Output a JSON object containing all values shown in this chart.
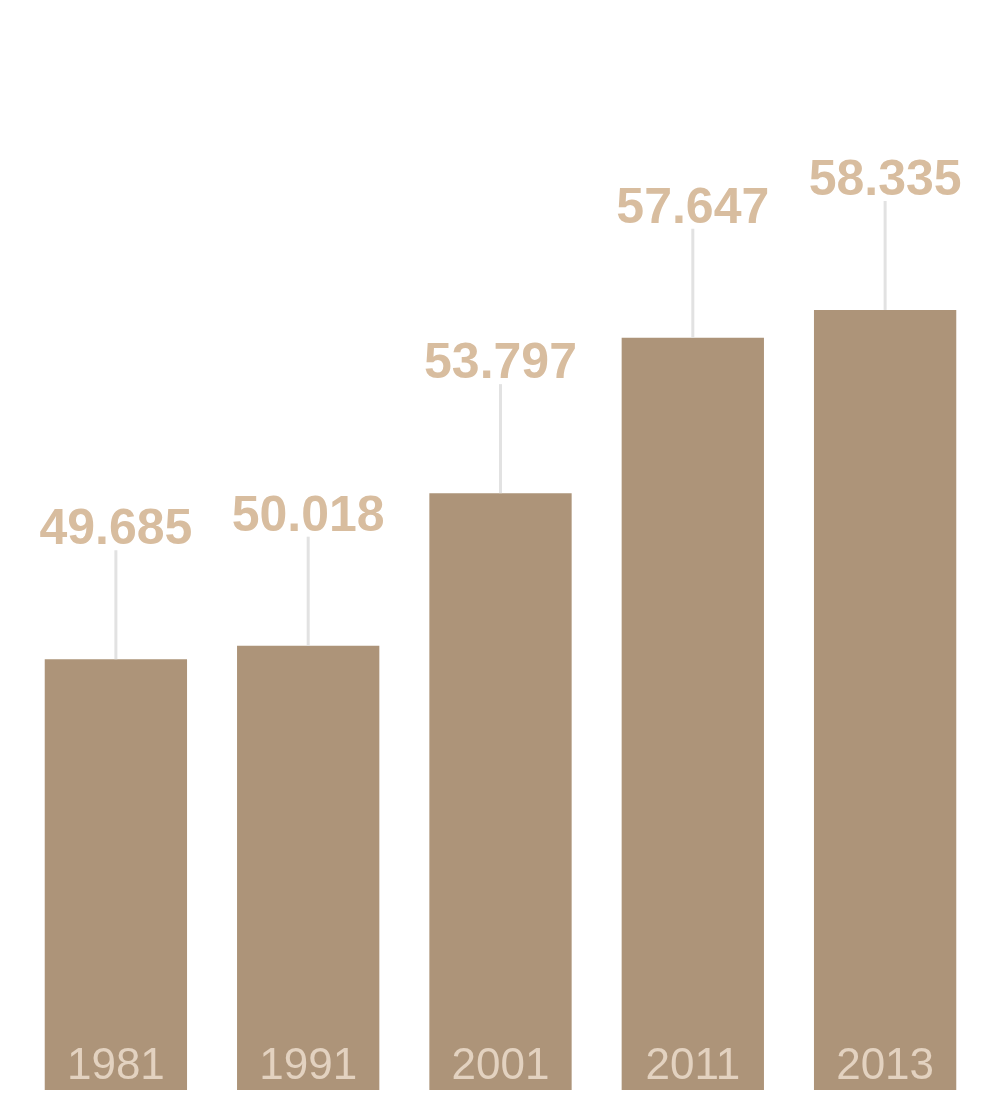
{
  "chart_data": {
    "type": "bar",
    "categories": [
      "1981",
      "1991",
      "2001",
      "2011",
      "2013"
    ],
    "values": [
      49.685,
      50.018,
      53.797,
      57.647,
      58.335
    ],
    "color": "#ad9479",
    "ylim": [
      39,
      66
    ],
    "data_labels": true,
    "value_labels": [
      "49.685",
      "50.018",
      "53.797",
      "57.647",
      "58.335"
    ],
    "tick_labels": "x",
    "grid": false
  }
}
